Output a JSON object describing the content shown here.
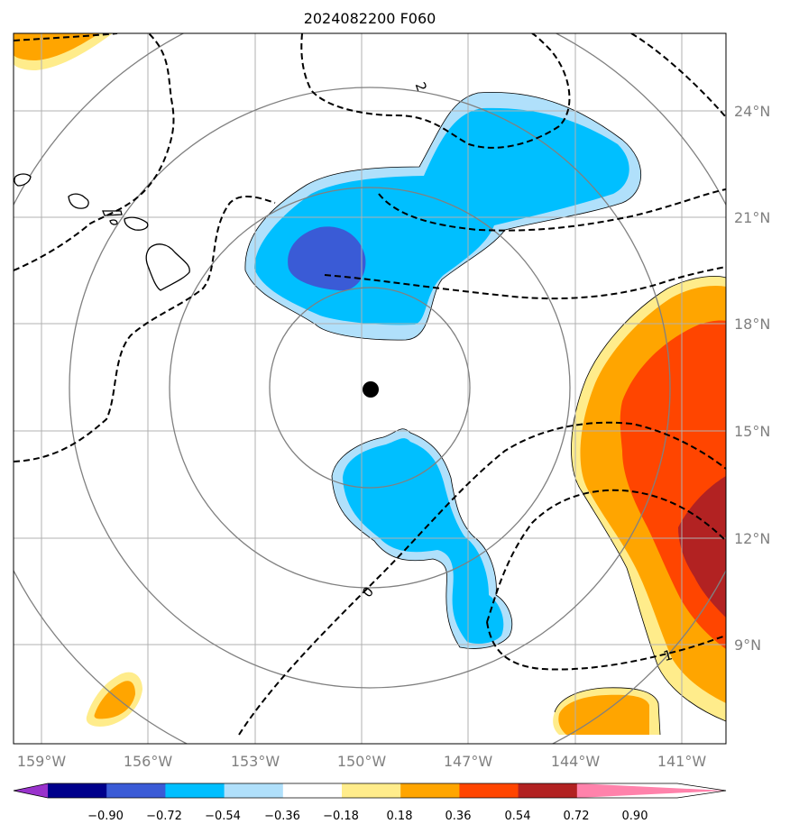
{
  "title": "2024082200 F060",
  "axes": {
    "lon_ticks": [
      "159°W",
      "156°W",
      "153°W",
      "150°W",
      "147°W",
      "144°W",
      "141°W"
    ],
    "lat_ticks": [
      "24°N",
      "21°N",
      "18°N",
      "15°N",
      "12°N",
      "9°N"
    ]
  },
  "colorbar": {
    "levels": [
      "−0.90",
      "−0.72",
      "−0.54",
      "−0.36",
      "−0.18",
      "0.18",
      "0.36",
      "0.54",
      "0.72",
      "0.90"
    ],
    "colors": [
      "#9932cc",
      "#00008b",
      "#3a5bd6",
      "#00bfff",
      "#b0e0fb",
      "#ffffff",
      "#ffec8b",
      "#ffa500",
      "#ff4500",
      "#b22222",
      "#ff82ab"
    ]
  },
  "contour_labels": [
    "2",
    "0",
    "1"
  ],
  "storm_center": {
    "lon": -149.8,
    "lat": 16.2
  },
  "colors": {
    "gridline": "#b0b0b0",
    "range_ring": "#808080",
    "coastline": "#000000"
  }
}
